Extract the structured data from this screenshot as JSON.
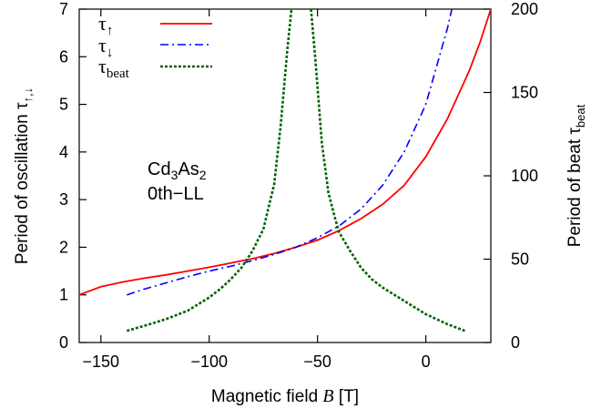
{
  "chart_data": {
    "type": "line",
    "xlabel": {
      "prefix": "Magnetic field ",
      "var": "B",
      "suffix": " [T]"
    },
    "ylabel_left": {
      "base": "Period of  oscillation τ",
      "sub": "↑,↓"
    },
    "ylabel_right": {
      "base": "Period of beat τ",
      "sub": "beat"
    },
    "xlim": [
      -160,
      30
    ],
    "ylim_left": [
      0,
      7
    ],
    "ylim_right": [
      0,
      200
    ],
    "xticks": [
      -150,
      -100,
      -50,
      0
    ],
    "xtick_labels": [
      "−150",
      "−100",
      "−50",
      "0"
    ],
    "yticks_left": [
      0,
      1,
      2,
      3,
      4,
      5,
      6,
      7
    ],
    "yticks_right": [
      0,
      50,
      100,
      150,
      200
    ],
    "grid": false,
    "legend_position": "top-left",
    "annotation": {
      "line1_base": "Cd",
      "line1_sub1": "3",
      "line1_mid": "As",
      "line1_sub2": "2",
      "line2": "0th−LL"
    },
    "series": [
      {
        "name": "τ↑",
        "name_base": "τ",
        "name_sub": "↑",
        "axis": "left",
        "color": "#ff0000",
        "dash": "solid",
        "x": [
          -160,
          -150,
          -140,
          -130,
          -120,
          -110,
          -100,
          -90,
          -80,
          -70,
          -60,
          -50,
          -40,
          -30,
          -20,
          -10,
          0,
          10,
          20,
          25,
          30
        ],
        "y": [
          1.0,
          1.17,
          1.27,
          1.35,
          1.42,
          1.5,
          1.58,
          1.67,
          1.76,
          1.87,
          2.0,
          2.15,
          2.35,
          2.6,
          2.9,
          3.3,
          3.9,
          4.7,
          5.7,
          6.3,
          7.0
        ]
      },
      {
        "name": "τ↓",
        "name_base": "τ",
        "name_sub": "↓",
        "axis": "left",
        "color": "#0000ff",
        "dash": "dashdot",
        "x": [
          -138,
          -130,
          -120,
          -110,
          -100,
          -90,
          -80,
          -70,
          -60,
          -50,
          -40,
          -30,
          -20,
          -10,
          0,
          5,
          10,
          12
        ],
        "y": [
          1.0,
          1.12,
          1.25,
          1.38,
          1.5,
          1.6,
          1.72,
          1.85,
          2.0,
          2.2,
          2.45,
          2.8,
          3.3,
          4.0,
          5.0,
          5.8,
          6.6,
          7.0
        ]
      },
      {
        "name": "τbeat",
        "name_base": "τ",
        "name_sub": "beat",
        "axis": "right",
        "color": "#006400",
        "dash": "dotted",
        "x": [
          -138,
          -130,
          -120,
          -110,
          -100,
          -95,
          -90,
          -85,
          -80,
          -75,
          -70,
          -67,
          -64,
          -62
        ],
        "y": [
          7,
          10,
          14,
          19,
          27,
          32,
          38,
          45,
          55,
          68,
          95,
          130,
          175,
          200
        ],
        "x2": [
          -53,
          -51,
          -48,
          -45,
          -42,
          -40,
          -35,
          -30,
          -25,
          -20,
          -10,
          0,
          10,
          18
        ],
        "y2": [
          200,
          170,
          120,
          90,
          75,
          66,
          55,
          45,
          38,
          33,
          25,
          17,
          11,
          7
        ]
      }
    ]
  }
}
